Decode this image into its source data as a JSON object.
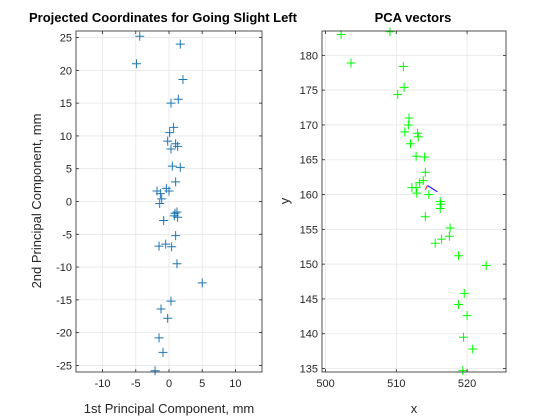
{
  "chart_data": [
    {
      "type": "scatter",
      "title": "Projected Coordinates for Going Slight Left",
      "xlabel": "1st Principal Component, mm",
      "ylabel": "2nd Principal Component, mm",
      "xlim": [
        -14,
        14
      ],
      "ylim": [
        -26,
        26
      ],
      "xticks": [
        -10,
        -5,
        0,
        5,
        10
      ],
      "yticks": [
        -25,
        -20,
        -15,
        -10,
        -5,
        0,
        5,
        10,
        15,
        20,
        25
      ],
      "grid": true,
      "marker": "+",
      "marker_color": "#1f77b4",
      "series": [
        {
          "points": [
            [
              -4.4,
              25.2
            ],
            [
              1.7,
              24.0
            ],
            [
              -4.9,
              21.0
            ],
            [
              2.1,
              18.6
            ],
            [
              1.4,
              15.6
            ],
            [
              0.3,
              15.0
            ],
            [
              0.7,
              11.3
            ],
            [
              0.1,
              10.5
            ],
            [
              -0.2,
              9.2
            ],
            [
              1.0,
              8.8
            ],
            [
              1.3,
              8.4
            ],
            [
              0.3,
              8.0
            ],
            [
              0.5,
              5.4
            ],
            [
              1.7,
              5.2
            ],
            [
              -0.4,
              2.0
            ],
            [
              0.0,
              1.6
            ],
            [
              1.0,
              3.0
            ],
            [
              -1.8,
              1.6
            ],
            [
              -1.3,
              1.2
            ],
            [
              -1.1,
              0.4
            ],
            [
              -1.4,
              -0.3
            ],
            [
              1.2,
              -1.6
            ],
            [
              0.9,
              -1.8
            ],
            [
              0.8,
              -2.2
            ],
            [
              1.3,
              -2.4
            ],
            [
              -0.8,
              -2.9
            ],
            [
              1.0,
              -5.2
            ],
            [
              -1.5,
              -6.8
            ],
            [
              -0.5,
              -6.5
            ],
            [
              0.4,
              -6.9
            ],
            [
              1.2,
              -9.5
            ],
            [
              5.0,
              -12.4
            ],
            [
              0.3,
              -15.2
            ],
            [
              -1.2,
              -16.4
            ],
            [
              -0.2,
              -17.8
            ],
            [
              -1.5,
              -20.8
            ],
            [
              -0.9,
              -23.0
            ],
            [
              -2.1,
              -25.8
            ]
          ]
        }
      ]
    },
    {
      "type": "scatter",
      "title": "PCA vectors",
      "xlabel": "x",
      "ylabel": "y",
      "xlim": [
        499.5,
        525.5
      ],
      "ylim": [
        134.5,
        183.5
      ],
      "xticks": [
        500,
        510,
        520
      ],
      "yticks": [
        135,
        140,
        145,
        150,
        155,
        160,
        165,
        170,
        175,
        180
      ],
      "grid": true,
      "marker": "+",
      "marker_color": "#00ff00",
      "series": [
        {
          "points": [
            [
              502.2,
              183.0
            ],
            [
              509.1,
              183.4
            ],
            [
              503.6,
              178.9
            ],
            [
              511.0,
              178.4
            ],
            [
              511.1,
              175.4
            ],
            [
              510.2,
              174.4
            ],
            [
              511.8,
              171.0
            ],
            [
              511.7,
              170.0
            ],
            [
              511.2,
              169.0
            ],
            [
              513.0,
              168.8
            ],
            [
              513.1,
              168.3
            ],
            [
              512.0,
              167.3
            ],
            [
              512.8,
              165.5
            ],
            [
              514.0,
              165.4
            ],
            [
              514.1,
              163.2
            ],
            [
              513.8,
              162.0
            ],
            [
              513.3,
              161.7
            ],
            [
              512.2,
              161.0
            ],
            [
              512.8,
              161.0
            ],
            [
              512.9,
              160.2
            ],
            [
              514.6,
              160.0
            ],
            [
              516.2,
              159.0
            ],
            [
              516.3,
              158.6
            ],
            [
              516.2,
              158.0
            ],
            [
              514.1,
              156.8
            ],
            [
              517.6,
              155.2
            ],
            [
              515.5,
              153.0
            ],
            [
              516.4,
              153.6
            ],
            [
              517.5,
              154.0
            ],
            [
              518.8,
              151.2
            ],
            [
              522.7,
              149.8
            ],
            [
              519.6,
              145.8
            ],
            [
              518.8,
              144.2
            ],
            [
              520.0,
              142.6
            ],
            [
              519.5,
              139.5
            ],
            [
              520.8,
              137.8
            ],
            [
              519.4,
              134.7
            ]
          ]
        }
      ],
      "vectors": [
        {
          "color": "#1f1fff",
          "from": [
            514.4,
            161.3
          ],
          "to": [
            515.8,
            160.4
          ]
        },
        {
          "color": "#ff3030",
          "from": [
            514.4,
            161.3
          ],
          "to": [
            514.1,
            160.7
          ]
        }
      ]
    }
  ]
}
